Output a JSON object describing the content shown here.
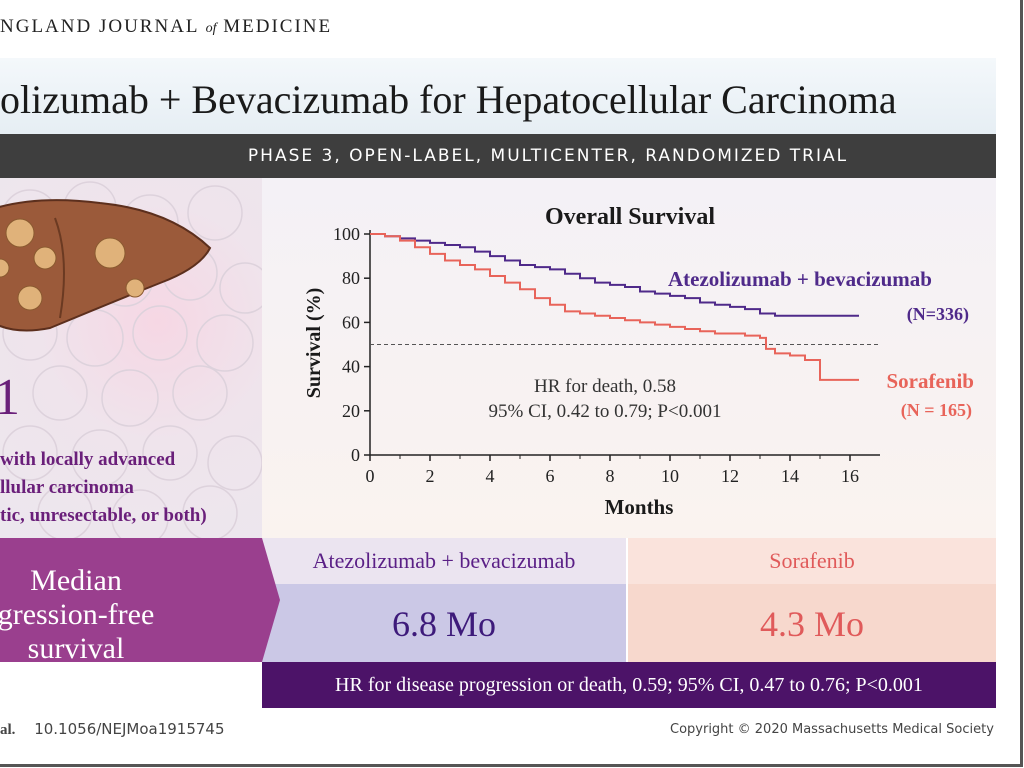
{
  "header": {
    "journal_main": "NGLAND JOURNAL",
    "journal_of": "of",
    "journal_end": "MEDICINE",
    "title": "olizumab + Bevacizumab for Hepatocellular Carcinoma",
    "phase": "PHASE 3, OPEN-LABEL, MULTICENTER, RANDOMIZED TRIAL"
  },
  "population": {
    "big_n": "1",
    "lines": [
      "with locally advanced",
      "llular carcinoma",
      "tic, unresectable, or both)"
    ]
  },
  "chart_data": {
    "type": "line",
    "title": "Overall Survival",
    "xlabel": "Months",
    "ylabel": "Survival (%)",
    "xlim": [
      0,
      17
    ],
    "ylim": [
      0,
      100
    ],
    "x_ticks": [
      0,
      2,
      4,
      6,
      8,
      10,
      12,
      14,
      16
    ],
    "y_ticks": [
      0,
      20,
      40,
      60,
      80,
      100
    ],
    "reference_line_y": 50,
    "series": [
      {
        "name": "Atezolizumab + bevacizumab",
        "n_label": "(N=336)",
        "color": "#4f2a8a",
        "x": [
          0,
          0.5,
          1,
          1.5,
          2,
          2.5,
          3,
          3.5,
          4,
          4.5,
          5,
          5.5,
          6,
          6.5,
          7,
          7.5,
          8,
          8.5,
          9,
          9.5,
          10,
          10.5,
          11,
          11.5,
          12,
          12.5,
          13,
          13.5,
          14,
          14.5,
          15,
          15.5,
          16,
          16.3
        ],
        "y": [
          100,
          99,
          98,
          97,
          96,
          95,
          94,
          92,
          90,
          88,
          86,
          85,
          84,
          82,
          80,
          78,
          77,
          76,
          74,
          73,
          72,
          71,
          69,
          68,
          67,
          66,
          64,
          63,
          63,
          63,
          63,
          63,
          63,
          63
        ]
      },
      {
        "name": "Sorafenib",
        "n_label": "(N = 165)",
        "color": "#e8645a",
        "x": [
          0,
          0.5,
          1,
          1.5,
          2,
          2.5,
          3,
          3.5,
          4,
          4.5,
          5,
          5.5,
          6,
          6.5,
          7,
          7.5,
          8,
          8.5,
          9,
          9.5,
          10,
          10.5,
          11,
          11.5,
          12,
          12.5,
          13,
          13.2,
          13.5,
          14,
          14.5,
          15,
          15.5,
          16,
          16.3
        ],
        "y": [
          100,
          99,
          97,
          94,
          91,
          88,
          86,
          84,
          81,
          78,
          75,
          71,
          68,
          65,
          64,
          63,
          62,
          61,
          60,
          59,
          58,
          57,
          56,
          55,
          55,
          54,
          53,
          48,
          46,
          45,
          43,
          34,
          34,
          34,
          34
        ]
      }
    ],
    "annotation": [
      "HR for death, 0.58",
      "95% CI, 0.42 to 0.79; P<0.001"
    ]
  },
  "pfs": {
    "label_lines": [
      "Median",
      "gression-free",
      "survival"
    ],
    "atezo_label": "Atezolizumab + bevacizumab",
    "atezo_value": "6.8 Mo",
    "sorafenib_label": "Sorafenib",
    "sorafenib_value": "4.3 Mo",
    "hr_text": "HR for disease progression or death, 0.59; 95% CI, 0.47 to 0.76; P<0.001"
  },
  "footer": {
    "al": "al.",
    "doi": "10.1056/NEJMoa1915745",
    "copyright": "Copyright © 2020 Massachusetts Medical Society"
  }
}
